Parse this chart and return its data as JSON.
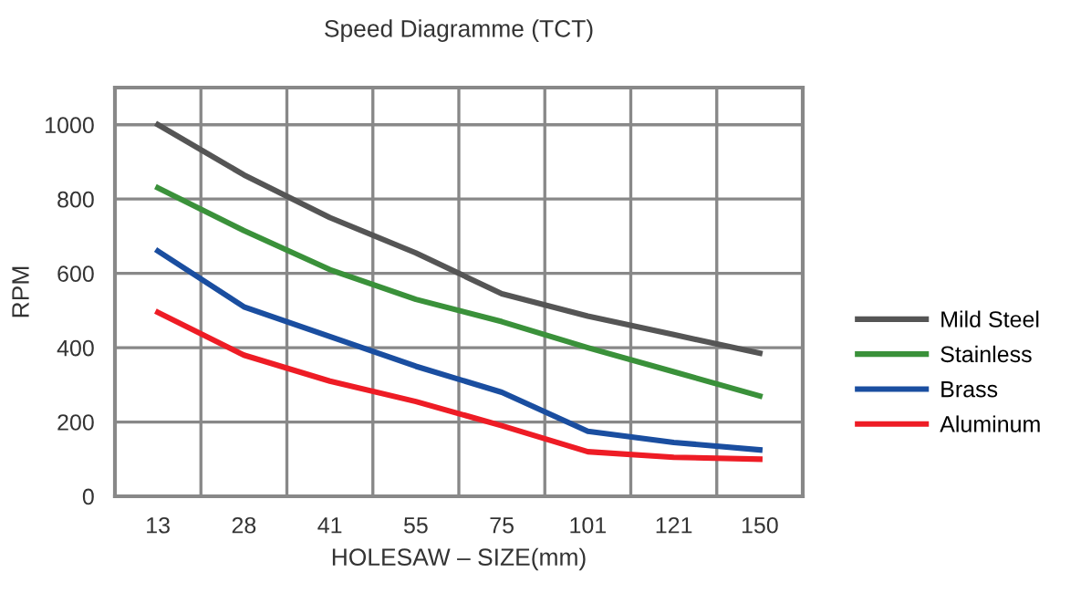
{
  "chart_data": {
    "type": "line",
    "title": "Speed Diagramme (TCT)",
    "xlabel": "HOLESAW – SIZE(mm)",
    "ylabel": "RPM",
    "categories": [
      "13",
      "28",
      "41",
      "55",
      "75",
      "101",
      "121",
      "150"
    ],
    "series": [
      {
        "name": "Mild Steel",
        "color": "#555555",
        "values": [
          1000,
          865,
          750,
          655,
          545,
          485,
          435,
          385
        ]
      },
      {
        "name": "Stainless",
        "color": "#3a913a",
        "values": [
          830,
          715,
          610,
          530,
          470,
          400,
          335,
          270
        ]
      },
      {
        "name": "Brass",
        "color": "#1a4ea0",
        "values": [
          660,
          510,
          430,
          350,
          280,
          175,
          145,
          125
        ]
      },
      {
        "name": "Aluminum",
        "color": "#ee1c25",
        "values": [
          495,
          380,
          310,
          255,
          190,
          120,
          105,
          100
        ]
      }
    ],
    "ylim": [
      0,
      1100
    ],
    "yticks": [
      0,
      200,
      400,
      600,
      800,
      1000
    ],
    "grid": true,
    "legend": "right",
    "marker": "none",
    "line_style": "solid"
  }
}
